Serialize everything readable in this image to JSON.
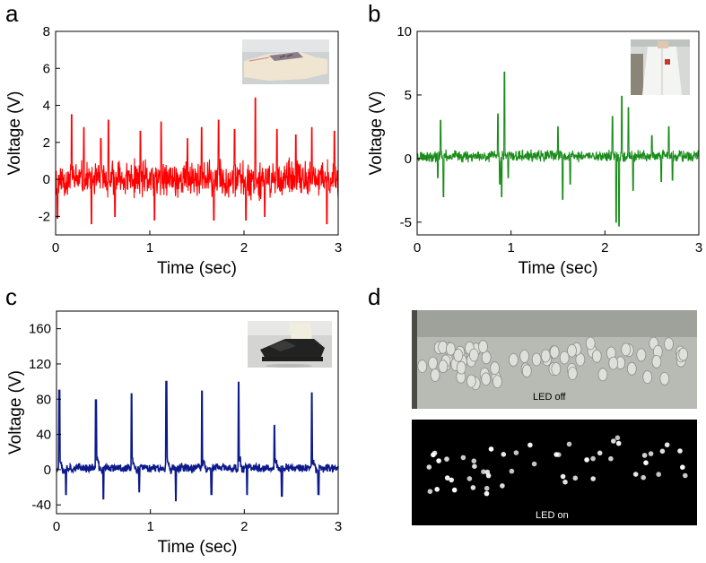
{
  "figure": {
    "panel_labels": [
      "a",
      "b",
      "c",
      "d"
    ]
  },
  "chart_data": [
    {
      "panel": "a",
      "type": "line",
      "title": "",
      "xlabel": "Time (sec)",
      "ylabel": "Voltage (V)",
      "xlim": [
        0,
        3
      ],
      "ylim": [
        -3,
        8
      ],
      "xticks": [
        "0",
        "1",
        "2",
        "3"
      ],
      "yticks": [
        "-2",
        "0",
        "2",
        "4",
        "6",
        "8"
      ],
      "xtick_values": [
        0,
        1,
        2,
        3
      ],
      "ytick_values": [
        -2,
        0,
        2,
        4,
        6,
        8
      ],
      "color": "#ff0000",
      "inset": "glove-photo",
      "series": [
        {
          "name": "glove",
          "baseline": 0,
          "noise_amplitude": 1.2,
          "peaks": [
            [
              0.02,
              -2.1
            ],
            [
              0.17,
              3.5
            ],
            [
              0.3,
              2.8
            ],
            [
              0.38,
              -2.4
            ],
            [
              0.48,
              2.2
            ],
            [
              0.56,
              3.2
            ],
            [
              0.63,
              -2.0
            ],
            [
              0.9,
              2.6
            ],
            [
              1.05,
              -2.2
            ],
            [
              1.12,
              3.1
            ],
            [
              1.4,
              2.2
            ],
            [
              1.55,
              2.8
            ],
            [
              1.68,
              -2.2
            ],
            [
              1.73,
              3.2
            ],
            [
              1.9,
              2.7
            ],
            [
              2.02,
              -2.2
            ],
            [
              2.12,
              4.4
            ],
            [
              2.22,
              -2.0
            ],
            [
              2.35,
              2.7
            ],
            [
              2.55,
              2.4
            ],
            [
              2.72,
              2.8
            ],
            [
              2.88,
              -2.4
            ],
            [
              2.96,
              2.6
            ]
          ]
        }
      ]
    },
    {
      "panel": "b",
      "type": "line",
      "title": "",
      "xlabel": "Time (sec)",
      "ylabel": "Voltage (V)",
      "xlim": [
        0,
        3
      ],
      "ylim": [
        -6,
        10
      ],
      "xticks": [
        "0",
        "1",
        "2",
        "3"
      ],
      "yticks": [
        "-5",
        "0",
        "5",
        "10"
      ],
      "xtick_values": [
        0,
        1,
        2,
        3
      ],
      "ytick_values": [
        -5,
        0,
        5,
        10
      ],
      "color": "#1a8c1a",
      "inset": "lab-coat-photo",
      "series": [
        {
          "name": "lab coat",
          "baseline": 0.2,
          "noise_amplitude": 0.55,
          "peaks": [
            [
              0.22,
              -1.5
            ],
            [
              0.25,
              3.0
            ],
            [
              0.28,
              -3.0
            ],
            [
              0.86,
              3.5
            ],
            [
              0.88,
              -2.0
            ],
            [
              0.9,
              -3.0
            ],
            [
              0.93,
              6.8
            ],
            [
              0.97,
              -1.5
            ],
            [
              1.5,
              2.5
            ],
            [
              1.55,
              -3.2
            ],
            [
              1.63,
              -2.0
            ],
            [
              2.08,
              3.3
            ],
            [
              2.12,
              -5.0
            ],
            [
              2.15,
              -5.3
            ],
            [
              2.18,
              4.9
            ],
            [
              2.25,
              4.0
            ],
            [
              2.3,
              -2.5
            ],
            [
              2.5,
              1.8
            ],
            [
              2.6,
              -1.8
            ],
            [
              2.68,
              2.5
            ],
            [
              2.72,
              -1.7
            ]
          ]
        }
      ]
    },
    {
      "panel": "c",
      "type": "line",
      "title": "",
      "xlabel": "Time (sec)",
      "ylabel": "Voltage (V)",
      "xlim": [
        0,
        3
      ],
      "ylim": [
        -50,
        180
      ],
      "xticks": [
        "0",
        "1",
        "2",
        "3"
      ],
      "yticks": [
        "-40",
        "0",
        "40",
        "80",
        "120",
        "160"
      ],
      "xtick_values": [
        0,
        1,
        2,
        3
      ],
      "ytick_values": [
        -40,
        0,
        40,
        80,
        120,
        160
      ],
      "color": "#0d1a8c",
      "inset": "shoe-photo",
      "series": [
        {
          "name": "shoe",
          "baseline": 2,
          "noise_amplitude": 6,
          "peaks": [
            [
              0.03,
              90
            ],
            [
              0.42,
              79
            ],
            [
              0.8,
              86
            ],
            [
              1.17,
              100
            ],
            [
              1.55,
              89
            ],
            [
              1.94,
              99
            ],
            [
              2.32,
              50
            ],
            [
              2.72,
              87
            ]
          ],
          "troughs": [
            [
              0.1,
              -28
            ],
            [
              0.5,
              -33
            ],
            [
              0.88,
              -25
            ],
            [
              1.27,
              -35
            ],
            [
              1.65,
              -28
            ],
            [
              2.03,
              -28
            ],
            [
              2.4,
              -30
            ],
            [
              2.79,
              -28
            ]
          ]
        }
      ]
    }
  ],
  "panel_d": {
    "top_label": "LED off",
    "bottom_label": "LED on"
  },
  "colors": {
    "led_off_bg": "#b8bab4",
    "led_on_bg": "#000000"
  }
}
